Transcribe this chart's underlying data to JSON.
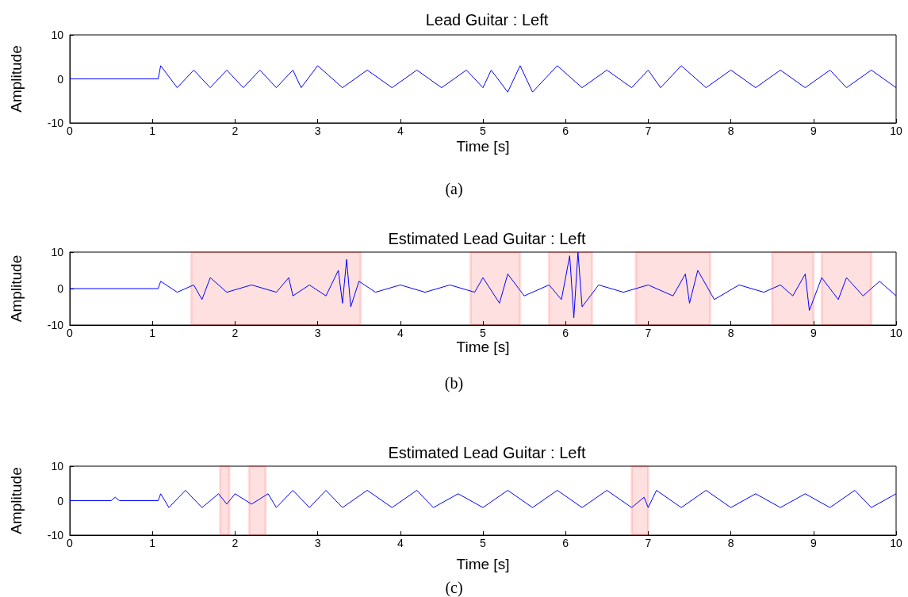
{
  "chart_data": [
    {
      "type": "line",
      "title": "Lead Guitar : Left",
      "xlabel": "Time [s]",
      "ylabel": "Amplitude",
      "annotations": [
        "(a)"
      ],
      "xlim": [
        0,
        10
      ],
      "xticks": [
        0,
        1,
        2,
        3,
        4,
        5,
        6,
        7,
        8,
        9,
        10
      ],
      "ylim": [
        -10,
        10
      ],
      "yticks": [
        -10,
        0,
        10
      ],
      "grid": false,
      "marker": "none",
      "line_style": "solid",
      "series": [
        {
          "color": "#0000ff",
          "x": [
            0,
            1.07,
            1.1,
            1.3,
            1.5,
            1.7,
            1.9,
            2.1,
            2.3,
            2.5,
            2.7,
            2.8,
            3.0,
            3.3,
            3.6,
            3.9,
            4.2,
            4.5,
            4.8,
            5.0,
            5.1,
            5.3,
            5.45,
            5.6,
            5.9,
            6.2,
            6.5,
            6.8,
            7.0,
            7.15,
            7.4,
            7.7,
            8.0,
            8.3,
            8.6,
            8.9,
            9.2,
            9.4,
            9.7,
            10
          ],
          "values": [
            0,
            0,
            3,
            -2,
            2,
            -2,
            2,
            -2,
            2,
            -2,
            2,
            -2,
            3,
            -2,
            2,
            -2,
            2,
            -2,
            2,
            -2,
            2,
            -3,
            3,
            -3,
            3,
            -2,
            2,
            -2,
            2,
            -2,
            3,
            -2,
            2,
            -2,
            2,
            -2,
            2,
            -2,
            2,
            -2
          ]
        }
      ]
    },
    {
      "type": "line",
      "title": "Estimated Lead Guitar : Left",
      "xlabel": "Time [s]",
      "ylabel": "Amplitude",
      "annotations": [
        "(b)"
      ],
      "xlim": [
        0,
        10
      ],
      "xticks": [
        0,
        1,
        2,
        3,
        4,
        5,
        6,
        7,
        8,
        9,
        10
      ],
      "ylim": [
        -10,
        10
      ],
      "yticks": [
        -10,
        0,
        10
      ],
      "grid": false,
      "marker": "none",
      "line_style": "solid",
      "bands": [
        {
          "axis": "x",
          "from": 1.47,
          "to": 3.52,
          "color": "#ff0000"
        },
        {
          "axis": "x",
          "from": 4.85,
          "to": 5.45,
          "color": "#ff0000"
        },
        {
          "axis": "x",
          "from": 5.8,
          "to": 6.32,
          "color": "#ff0000"
        },
        {
          "axis": "x",
          "from": 6.85,
          "to": 7.75,
          "color": "#ff0000"
        },
        {
          "axis": "x",
          "from": 8.5,
          "to": 9.0,
          "color": "#ff0000"
        },
        {
          "axis": "x",
          "from": 9.1,
          "to": 9.7,
          "color": "#ff0000"
        }
      ],
      "series": [
        {
          "color": "#0000ff",
          "x": [
            0,
            1.07,
            1.1,
            1.3,
            1.5,
            1.6,
            1.7,
            1.9,
            2.2,
            2.5,
            2.65,
            2.7,
            2.9,
            3.1,
            3.25,
            3.3,
            3.35,
            3.4,
            3.5,
            3.7,
            4.0,
            4.3,
            4.6,
            4.9,
            5.0,
            5.2,
            5.3,
            5.5,
            5.8,
            5.95,
            6.05,
            6.1,
            6.15,
            6.2,
            6.4,
            6.7,
            7.0,
            7.3,
            7.45,
            7.5,
            7.6,
            7.8,
            8.1,
            8.4,
            8.6,
            8.75,
            8.9,
            8.95,
            9.1,
            9.3,
            9.4,
            9.6,
            9.8,
            10
          ],
          "values": [
            0,
            0,
            2,
            -1,
            1,
            -3,
            3,
            -1,
            1,
            -1,
            3,
            -2,
            1,
            -2,
            5,
            -4,
            8,
            -5,
            2,
            -1,
            1,
            -1,
            1,
            -1,
            3,
            -4,
            4,
            -2,
            1,
            -3,
            9,
            -8,
            10,
            -5,
            1,
            -1,
            1,
            -2,
            4,
            -4,
            5,
            -3,
            1,
            -1,
            1,
            -2,
            4,
            -6,
            3,
            -3,
            3,
            -2,
            2,
            -2
          ]
        }
      ]
    },
    {
      "type": "line",
      "title": "Estimated Lead Guitar : Left",
      "xlabel": "Time [s]",
      "ylabel": "Amplitude",
      "annotations": [
        "(c)"
      ],
      "xlim": [
        0,
        10
      ],
      "xticks": [
        0,
        1,
        2,
        3,
        4,
        5,
        6,
        7,
        8,
        9,
        10
      ],
      "ylim": [
        -10,
        10
      ],
      "yticks": [
        -10,
        0,
        10
      ],
      "grid": false,
      "marker": "none",
      "line_style": "solid",
      "bands": [
        {
          "axis": "x",
          "from": 1.82,
          "to": 1.93,
          "color": "#ff0000"
        },
        {
          "axis": "x",
          "from": 2.17,
          "to": 2.37,
          "color": "#ff0000"
        },
        {
          "axis": "x",
          "from": 6.8,
          "to": 7.0,
          "color": "#ff0000"
        }
      ],
      "series": [
        {
          "color": "#0000ff",
          "x": [
            0,
            0.5,
            0.55,
            0.6,
            1.07,
            1.1,
            1.2,
            1.4,
            1.6,
            1.8,
            1.9,
            2.0,
            2.2,
            2.4,
            2.5,
            2.7,
            2.9,
            3.1,
            3.3,
            3.6,
            3.9,
            4.2,
            4.4,
            4.7,
            5.0,
            5.3,
            5.6,
            5.9,
            6.2,
            6.5,
            6.8,
            6.95,
            7.0,
            7.1,
            7.4,
            7.7,
            8.0,
            8.3,
            8.6,
            8.9,
            9.2,
            9.5,
            9.7,
            10
          ],
          "values": [
            0,
            0,
            1,
            0,
            0,
            2,
            -2,
            3,
            -2,
            2,
            -1,
            2,
            -1,
            2,
            -2,
            3,
            -2,
            3,
            -2,
            3,
            -2,
            3,
            -2,
            2,
            -2,
            3,
            -2,
            3,
            -2,
            3,
            -2,
            1,
            -2,
            3,
            -2,
            3,
            -2,
            2,
            -2,
            2,
            -2,
            3,
            -2,
            2
          ]
        }
      ]
    }
  ]
}
